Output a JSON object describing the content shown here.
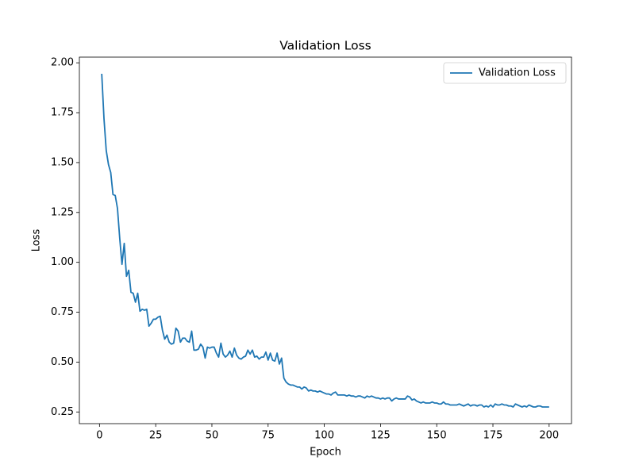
{
  "chart_data": {
    "type": "line",
    "title": "Validation Loss",
    "xlabel": "Epoch",
    "ylabel": "Loss",
    "x": [
      1,
      2,
      3,
      4,
      5,
      6,
      7,
      8,
      9,
      10,
      11,
      12,
      13,
      14,
      15,
      16,
      17,
      18,
      19,
      20,
      21,
      22,
      23,
      24,
      25,
      26,
      27,
      28,
      29,
      30,
      31,
      32,
      33,
      34,
      35,
      36,
      37,
      38,
      39,
      40,
      41,
      42,
      43,
      44,
      45,
      46,
      47,
      48,
      49,
      50,
      51,
      52,
      53,
      54,
      55,
      56,
      57,
      58,
      59,
      60,
      61,
      62,
      63,
      64,
      65,
      66,
      67,
      68,
      69,
      70,
      71,
      72,
      73,
      74,
      75,
      76,
      77,
      78,
      79,
      80,
      81,
      82,
      83,
      84,
      85,
      86,
      87,
      88,
      89,
      90,
      91,
      92,
      93,
      94,
      95,
      96,
      97,
      98,
      99,
      100,
      101,
      102,
      103,
      104,
      105,
      106,
      107,
      108,
      109,
      110,
      111,
      112,
      113,
      114,
      115,
      116,
      117,
      118,
      119,
      120,
      121,
      122,
      123,
      124,
      125,
      126,
      127,
      128,
      129,
      130,
      131,
      132,
      133,
      134,
      135,
      136,
      137,
      138,
      139,
      140,
      141,
      142,
      143,
      144,
      145,
      146,
      147,
      148,
      149,
      150,
      151,
      152,
      153,
      154,
      155,
      156,
      157,
      158,
      159,
      160,
      161,
      162,
      163,
      164,
      165,
      166,
      167,
      168,
      169,
      170,
      171,
      172,
      173,
      174,
      175,
      176,
      177,
      178,
      179,
      180,
      181,
      182,
      183,
      184,
      185,
      186,
      187,
      188,
      189,
      190,
      191,
      192,
      193,
      194,
      195,
      196,
      197,
      198,
      199,
      200
    ],
    "series": [
      {
        "name": "Validation Loss",
        "color": "#1f77b4",
        "values": [
          1.945,
          1.72,
          1.56,
          1.49,
          1.45,
          1.34,
          1.335,
          1.27,
          1.12,
          0.99,
          1.095,
          0.93,
          0.96,
          0.85,
          0.845,
          0.8,
          0.845,
          0.755,
          0.765,
          0.76,
          0.765,
          0.68,
          0.695,
          0.715,
          0.715,
          0.725,
          0.73,
          0.66,
          0.615,
          0.635,
          0.6,
          0.59,
          0.595,
          0.67,
          0.655,
          0.6,
          0.62,
          0.62,
          0.605,
          0.6,
          0.655,
          0.56,
          0.56,
          0.565,
          0.59,
          0.575,
          0.52,
          0.575,
          0.57,
          0.575,
          0.575,
          0.545,
          0.525,
          0.595,
          0.54,
          0.525,
          0.535,
          0.555,
          0.525,
          0.57,
          0.535,
          0.52,
          0.515,
          0.525,
          0.53,
          0.56,
          0.54,
          0.56,
          0.525,
          0.53,
          0.515,
          0.525,
          0.525,
          0.55,
          0.51,
          0.545,
          0.51,
          0.505,
          0.545,
          0.49,
          0.52,
          0.42,
          0.4,
          0.39,
          0.385,
          0.385,
          0.38,
          0.375,
          0.375,
          0.365,
          0.375,
          0.37,
          0.355,
          0.36,
          0.355,
          0.355,
          0.35,
          0.355,
          0.35,
          0.345,
          0.34,
          0.34,
          0.335,
          0.345,
          0.35,
          0.335,
          0.335,
          0.335,
          0.335,
          0.33,
          0.335,
          0.33,
          0.33,
          0.325,
          0.33,
          0.33,
          0.325,
          0.32,
          0.33,
          0.325,
          0.33,
          0.325,
          0.32,
          0.32,
          0.315,
          0.32,
          0.315,
          0.32,
          0.32,
          0.305,
          0.315,
          0.32,
          0.315,
          0.315,
          0.315,
          0.315,
          0.33,
          0.325,
          0.31,
          0.315,
          0.305,
          0.3,
          0.295,
          0.3,
          0.295,
          0.295,
          0.295,
          0.3,
          0.295,
          0.295,
          0.29,
          0.29,
          0.3,
          0.29,
          0.29,
          0.285,
          0.285,
          0.285,
          0.285,
          0.29,
          0.285,
          0.28,
          0.285,
          0.29,
          0.28,
          0.285,
          0.285,
          0.28,
          0.285,
          0.285,
          0.275,
          0.28,
          0.275,
          0.285,
          0.275,
          0.29,
          0.285,
          0.285,
          0.29,
          0.285,
          0.285,
          0.28,
          0.28,
          0.275,
          0.29,
          0.285,
          0.28,
          0.275,
          0.28,
          0.275,
          0.285,
          0.28,
          0.275,
          0.275,
          0.28,
          0.28,
          0.275,
          0.275,
          0.275,
          0.275
        ]
      }
    ],
    "xlim": [
      -8.95,
      209.95
    ],
    "xticks": [
      0,
      25,
      50,
      75,
      100,
      125,
      150,
      175,
      200
    ],
    "ylim": [
      0.1915,
      2.0285
    ],
    "yticks": [
      0.25,
      {
        "value": 0.5,
        "label": "0.50"
      },
      0.75,
      {
        "value": 1,
        "label": "1.00"
      },
      1.25,
      {
        "value": 1.5,
        "label": "1.50"
      },
      1.75,
      {
        "value": 2,
        "label": "2.00"
      }
    ],
    "legend": "upper right",
    "grid": false
  }
}
